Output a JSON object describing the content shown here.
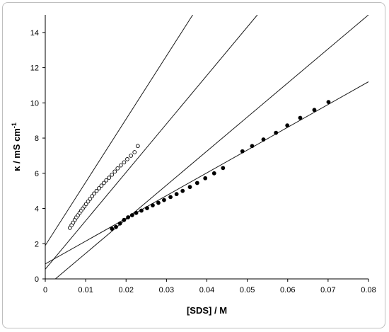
{
  "chart_data": {
    "type": "scatter",
    "title": "",
    "xlabel": "[SDS] / M",
    "ylabel_main": "κ / mS cm",
    "ylabel_sup": "-1",
    "xlim": [
      0,
      0.08
    ],
    "ylim": [
      0,
      15
    ],
    "x_ticks": [
      "0",
      "0.01",
      "0.02",
      "0.03",
      "0.04",
      "0.05",
      "0.06",
      "0.07",
      "0.08"
    ],
    "y_ticks": [
      "0",
      "2",
      "4",
      "6",
      "8",
      "10",
      "12",
      "14"
    ],
    "grid": false,
    "legend": "none",
    "series": [
      {
        "marker": "open-circle",
        "x": [
          0.0061,
          0.0065,
          0.0069,
          0.0073,
          0.0077,
          0.0081,
          0.0085,
          0.0089,
          0.0093,
          0.0097,
          0.0101,
          0.0106,
          0.0111,
          0.0116,
          0.0121,
          0.0127,
          0.0133,
          0.0139,
          0.0145,
          0.0151,
          0.0158,
          0.0165,
          0.0172,
          0.0179,
          0.0187,
          0.0195,
          0.0203,
          0.0212,
          0.0221,
          0.0229
        ],
        "y": [
          2.9,
          3.05,
          3.2,
          3.35,
          3.5,
          3.62,
          3.75,
          3.88,
          4.0,
          4.12,
          4.25,
          4.4,
          4.55,
          4.7,
          4.85,
          5.0,
          5.15,
          5.3,
          5.45,
          5.6,
          5.75,
          5.92,
          6.1,
          6.28,
          6.45,
          6.62,
          6.8,
          7.0,
          7.2,
          7.55
        ]
      },
      {
        "marker": "filled-circle",
        "x": [
          0.0165,
          0.0175,
          0.0185,
          0.0195,
          0.0205,
          0.0215,
          0.0225,
          0.0238,
          0.0252,
          0.0266,
          0.028,
          0.0294,
          0.031,
          0.0325,
          0.034,
          0.0358,
          0.0376,
          0.0396,
          0.0418,
          0.044,
          0.0488,
          0.0512,
          0.054,
          0.0571,
          0.0599,
          0.0631,
          0.0666,
          0.0701
        ],
        "y": [
          2.85,
          2.95,
          3.15,
          3.35,
          3.5,
          3.62,
          3.75,
          3.88,
          4.02,
          4.18,
          4.32,
          4.48,
          4.65,
          4.82,
          5.0,
          5.22,
          5.45,
          5.72,
          6.0,
          6.3,
          7.25,
          7.55,
          7.92,
          8.3,
          8.72,
          9.15,
          9.6,
          10.05
        ]
      }
    ],
    "fit_lines": [
      {
        "x": [
          0,
          0.0365
        ],
        "y": [
          1.9,
          15
        ]
      },
      {
        "x": [
          0,
          0.0525
        ],
        "y": [
          0.55,
          15
        ]
      },
      {
        "x": [
          0.0025,
          0.08
        ],
        "y": [
          0,
          15
        ]
      },
      {
        "x": [
          0,
          0.08
        ],
        "y": [
          0.85,
          11.2
        ]
      }
    ]
  }
}
